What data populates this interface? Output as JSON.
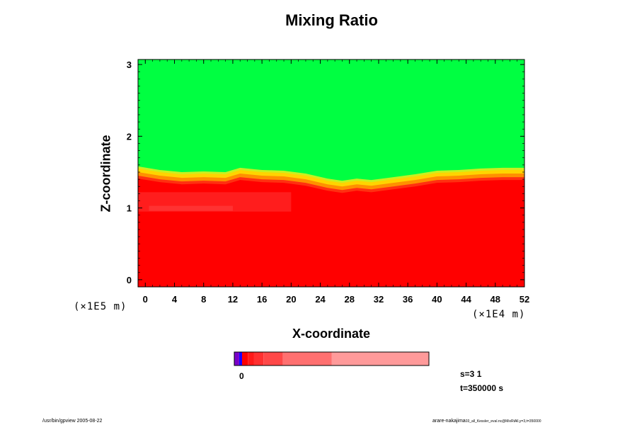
{
  "chart_data": {
    "type": "heatmap",
    "title": "Mixing Ratio",
    "xlabel": "X-coordinate",
    "ylabel": "Z-coordinate",
    "x_unit": "(×1E4 m)",
    "y_unit": "(×1E5 m)",
    "xlim": [
      -1,
      52
    ],
    "ylim": [
      -0.1,
      3.07
    ],
    "x_ticks": [
      0,
      4,
      8,
      12,
      16,
      20,
      24,
      28,
      32,
      36,
      40,
      44,
      48,
      52
    ],
    "y_ticks": [
      0,
      1,
      2,
      3
    ],
    "grid": false,
    "regions": [
      {
        "name": "upper",
        "color": "#00ff41",
        "description": "green layer"
      },
      {
        "name": "transition",
        "color": "#ffd400",
        "description": "yellow/orange interface"
      },
      {
        "name": "lower",
        "color": "#ff0000",
        "description": "red layer"
      }
    ],
    "interface_height": [
      {
        "x": -1,
        "z": 1.55
      },
      {
        "x": 2,
        "z": 1.5
      },
      {
        "x": 5,
        "z": 1.47
      },
      {
        "x": 8,
        "z": 1.48
      },
      {
        "x": 11,
        "z": 1.47
      },
      {
        "x": 13,
        "z": 1.53
      },
      {
        "x": 16,
        "z": 1.5
      },
      {
        "x": 19,
        "z": 1.49
      },
      {
        "x": 22,
        "z": 1.45
      },
      {
        "x": 25,
        "z": 1.38
      },
      {
        "x": 27,
        "z": 1.35
      },
      {
        "x": 29,
        "z": 1.38
      },
      {
        "x": 31,
        "z": 1.36
      },
      {
        "x": 34,
        "z": 1.4
      },
      {
        "x": 37,
        "z": 1.44
      },
      {
        "x": 40,
        "z": 1.49
      },
      {
        "x": 43,
        "z": 1.5
      },
      {
        "x": 46,
        "z": 1.52
      },
      {
        "x": 49,
        "z": 1.53
      },
      {
        "x": 52,
        "z": 1.53
      }
    ],
    "colorbar": {
      "label": "0",
      "segments": [
        {
          "color": "#7a00c8",
          "width": 1
        },
        {
          "color": "#1a00ff",
          "width": 0.6
        },
        {
          "color": "#ff0000",
          "width": 1.2
        },
        {
          "color": "#ff1a1a",
          "width": 1.2
        },
        {
          "color": "#ff3030",
          "width": 2
        },
        {
          "color": "#ff4848",
          "width": 4
        },
        {
          "color": "#ff7070",
          "width": 10
        },
        {
          "color": "#ff9a9a",
          "width": 20
        }
      ]
    }
  },
  "info": {
    "step": "s=3 1",
    "time": "t=350000 s",
    "footer_left": "/usr/bin/gpview 2005-08-22",
    "footer_right_main": "arare-nakajima",
    "footer_right_small": "03_all_Kessler_eval.nc@MixRtAll,y=3,t=350000"
  }
}
